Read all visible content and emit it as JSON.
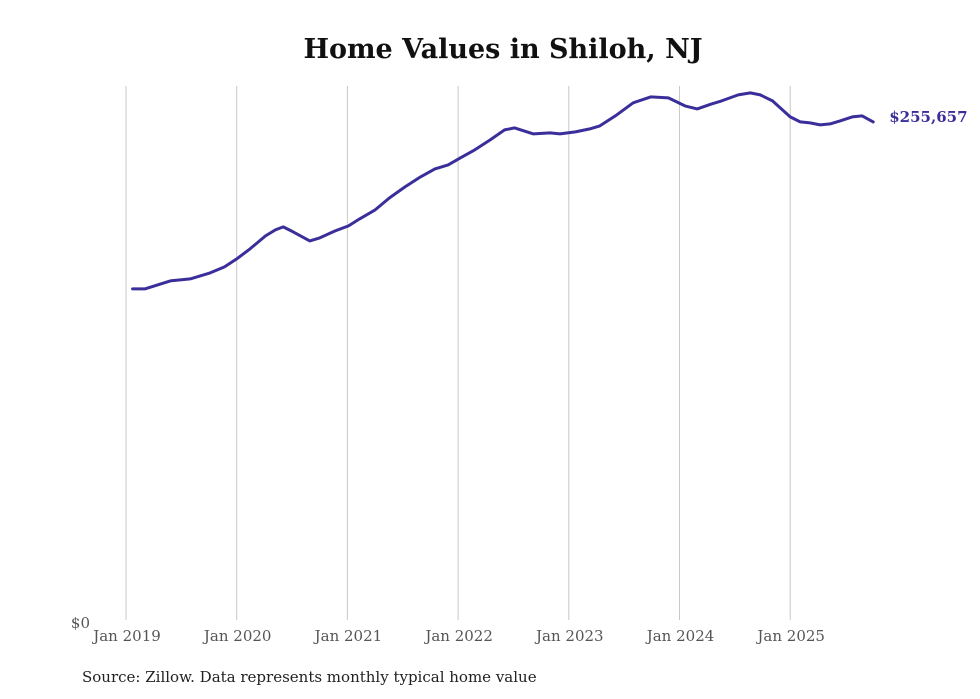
{
  "chart_data": {
    "type": "line",
    "title": "Home Values in Shiloh, NJ",
    "xlabel": "",
    "ylabel": "",
    "x_ticks": [
      {
        "value": 2019,
        "label": "Jan 2019"
      },
      {
        "value": 2020,
        "label": "Jan 2020"
      },
      {
        "value": 2021,
        "label": "Jan 2021"
      },
      {
        "value": 2022,
        "label": "Jan 2022"
      },
      {
        "value": 2023,
        "label": "Jan 2023"
      },
      {
        "value": 2024,
        "label": "Jan 2024"
      },
      {
        "value": 2025,
        "label": "Jan 2025"
      }
    ],
    "y_ticks": [
      {
        "value": 0,
        "label": "$0"
      }
    ],
    "xlim": [
      2019,
      2026.0
    ],
    "ylim": [
      0,
      274000
    ],
    "grid": "vertical",
    "series": [
      {
        "name": "Typical home value",
        "color": "#3a2f9a",
        "end_label": "$255,657",
        "x": [
          2019.06,
          2019.17,
          2019.4,
          2019.58,
          2019.76,
          2019.89,
          2020.0,
          2020.12,
          2020.26,
          2020.35,
          2020.42,
          2020.51,
          2020.66,
          2020.75,
          2020.89,
          2021.01,
          2021.11,
          2021.25,
          2021.38,
          2021.52,
          2021.66,
          2021.79,
          2021.91,
          2022.02,
          2022.15,
          2022.29,
          2022.42,
          2022.51,
          2022.68,
          2022.83,
          2022.92,
          2023.06,
          2023.19,
          2023.28,
          2023.42,
          2023.58,
          2023.74,
          2023.9,
          2024.05,
          2024.16,
          2024.29,
          2024.38,
          2024.53,
          2024.64,
          2024.73,
          2024.84,
          2025.0,
          2025.09,
          2025.18,
          2025.27,
          2025.36,
          2025.45,
          2025.56,
          2025.65,
          2025.75
        ],
        "values": [
          170260,
          170260,
          174350,
          175380,
          178440,
          181510,
          185600,
          190710,
          197360,
          200430,
          201960,
          199410,
          194810,
          196340,
          199920,
          202470,
          206050,
          210660,
          216790,
          222420,
          227530,
          231620,
          233660,
          237240,
          241330,
          246450,
          251560,
          252580,
          249510,
          250020,
          249510,
          250540,
          252070,
          253600,
          258720,
          265360,
          268430,
          267920,
          263830,
          262290,
          264850,
          266380,
          269450,
          270480,
          269450,
          266380,
          258210,
          255650,
          255140,
          254120,
          254630,
          256160,
          258210,
          258720,
          255657
        ]
      }
    ]
  },
  "footer": {
    "source": "Source: Zillow. Data represents monthly typical home value"
  }
}
